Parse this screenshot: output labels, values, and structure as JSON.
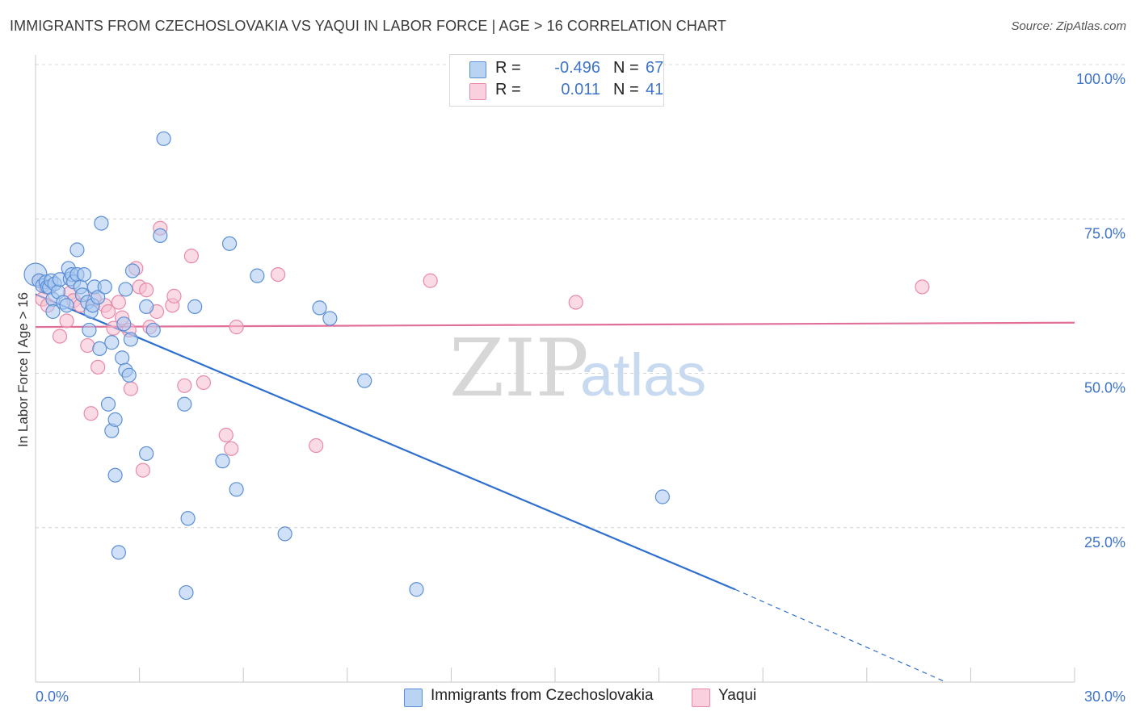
{
  "header": {
    "title": "IMMIGRANTS FROM CZECHOSLOVAKIA VS YAQUI IN LABOR FORCE | AGE > 16 CORRELATION CHART",
    "source": "Source: ZipAtlas.com"
  },
  "legend": {
    "r_label": "R =",
    "n_label": "N =",
    "rows": [
      {
        "r": "-0.496",
        "n": "67"
      },
      {
        "r": "0.011",
        "n": "41"
      }
    ]
  },
  "colors": {
    "blue_fill": "#a9c8f0",
    "blue_stroke": "#5b8fd6",
    "blue_line": "#2e6fcf",
    "pink_fill": "#f5bed0",
    "pink_stroke": "#e88aa8",
    "pink_line": "#e0709a",
    "tick_text": "#3d74c9",
    "grid": "#d6d6d6"
  },
  "watermark": {
    "zip": "ZIP",
    "atlas": "atlas"
  },
  "chart_data": {
    "type": "scatter",
    "title": "IMMIGRANTS FROM CZECHOSLOVAKIA VS YAQUI IN LABOR FORCE | AGE > 16 CORRELATION CHART",
    "xlabel": "",
    "ylabel": "In Labor Force | Age > 16",
    "xlim": [
      0,
      30
    ],
    "ylim": [
      0,
      100
    ],
    "x_tick_labels": [
      "0.0%",
      "30.0%"
    ],
    "y_ticks": [
      25,
      50,
      75,
      100
    ],
    "y_tick_labels": [
      "25.0%",
      "50.0%",
      "75.0%",
      "100.0%"
    ],
    "grid": true,
    "legend_position": "top-center",
    "series": [
      {
        "name": "Immigrants from Czechoslovakia",
        "color": "#5b8fd6",
        "trend": {
          "x": [
            0,
            20.2
          ],
          "y": [
            62.8,
            15.0
          ],
          "dashed_to": [
            26.2,
            0.2
          ]
        },
        "points": [
          [
            0.0,
            66.0
          ],
          [
            0.1,
            65.0
          ],
          [
            0.2,
            64.2
          ],
          [
            0.3,
            64.8
          ],
          [
            0.35,
            64.0
          ],
          [
            0.4,
            63.9
          ],
          [
            0.45,
            65.0
          ],
          [
            0.5,
            62.0
          ],
          [
            0.5,
            60.0
          ],
          [
            0.55,
            64.5
          ],
          [
            0.65,
            63.2
          ],
          [
            0.7,
            65.2
          ],
          [
            0.8,
            61.5
          ],
          [
            0.9,
            61.0
          ],
          [
            0.95,
            67.0
          ],
          [
            1.0,
            65.3
          ],
          [
            1.05,
            66.0
          ],
          [
            1.1,
            64.8
          ],
          [
            1.2,
            66.0
          ],
          [
            1.2,
            70.0
          ],
          [
            1.3,
            64.0
          ],
          [
            1.35,
            62.7
          ],
          [
            1.4,
            66.0
          ],
          [
            1.5,
            61.5
          ],
          [
            1.55,
            57.0
          ],
          [
            1.6,
            60.0
          ],
          [
            1.65,
            61.0
          ],
          [
            1.7,
            64.0
          ],
          [
            1.8,
            62.3
          ],
          [
            1.85,
            54.0
          ],
          [
            1.9,
            74.3
          ],
          [
            2.0,
            64.0
          ],
          [
            2.2,
            55.0
          ],
          [
            2.1,
            45.0
          ],
          [
            2.2,
            40.7
          ],
          [
            2.3,
            42.5
          ],
          [
            2.3,
            33.5
          ],
          [
            2.4,
            21.0
          ],
          [
            2.5,
            52.5
          ],
          [
            2.55,
            58.0
          ],
          [
            2.6,
            50.5
          ],
          [
            2.6,
            63.6
          ],
          [
            2.7,
            49.7
          ],
          [
            2.75,
            55.5
          ],
          [
            2.8,
            66.6
          ],
          [
            3.2,
            37.0
          ],
          [
            3.2,
            60.8
          ],
          [
            3.4,
            57.0
          ],
          [
            3.6,
            72.3
          ],
          [
            3.7,
            88.0
          ],
          [
            4.3,
            45.0
          ],
          [
            4.4,
            26.5
          ],
          [
            4.35,
            14.5
          ],
          [
            4.6,
            60.8
          ],
          [
            5.4,
            35.8
          ],
          [
            5.6,
            71.0
          ],
          [
            5.8,
            31.2
          ],
          [
            6.4,
            65.8
          ],
          [
            7.2,
            24.0
          ],
          [
            8.2,
            60.6
          ],
          [
            8.5,
            58.9
          ],
          [
            9.5,
            48.8
          ],
          [
            11.0,
            15.0
          ],
          [
            18.1,
            30.0
          ]
        ]
      },
      {
        "name": "Yaqui",
        "color": "#e88aa8",
        "trend": {
          "x": [
            0,
            30
          ],
          "y": [
            57.5,
            58.2
          ]
        },
        "points": [
          [
            0.1,
            65.0
          ],
          [
            0.2,
            62.0
          ],
          [
            0.3,
            64.0
          ],
          [
            0.35,
            61.0
          ],
          [
            0.7,
            56.0
          ],
          [
            0.9,
            58.5
          ],
          [
            1.0,
            63.0
          ],
          [
            1.1,
            61.8
          ],
          [
            1.3,
            61.0
          ],
          [
            1.5,
            54.5
          ],
          [
            1.6,
            43.5
          ],
          [
            1.7,
            62.0
          ],
          [
            1.8,
            51.0
          ],
          [
            2.0,
            61.0
          ],
          [
            2.1,
            60.0
          ],
          [
            2.25,
            57.3
          ],
          [
            2.4,
            61.5
          ],
          [
            2.5,
            59.0
          ],
          [
            2.7,
            57.0
          ],
          [
            2.9,
            67.0
          ],
          [
            2.75,
            47.5
          ],
          [
            3.0,
            64.0
          ],
          [
            3.1,
            34.3
          ],
          [
            3.2,
            63.5
          ],
          [
            3.3,
            57.5
          ],
          [
            3.5,
            60.0
          ],
          [
            3.6,
            73.5
          ],
          [
            3.95,
            61.0
          ],
          [
            4.0,
            62.5
          ],
          [
            4.3,
            48.0
          ],
          [
            4.5,
            69.0
          ],
          [
            4.85,
            48.5
          ],
          [
            5.5,
            40.0
          ],
          [
            5.65,
            37.8
          ],
          [
            5.8,
            57.5
          ],
          [
            7.0,
            66.0
          ],
          [
            8.1,
            38.3
          ],
          [
            11.4,
            65.0
          ],
          [
            15.6,
            61.5
          ],
          [
            25.6,
            64.0
          ]
        ]
      }
    ]
  }
}
